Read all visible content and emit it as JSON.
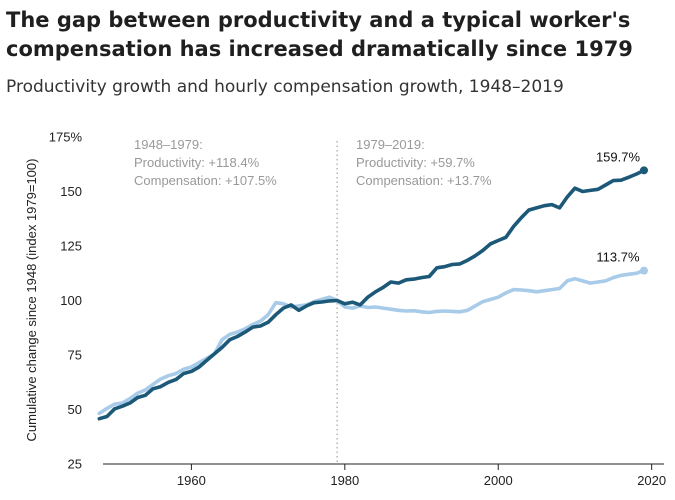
{
  "colors": {
    "productivity": "#1c5878",
    "compensation": "#a7cbe8",
    "divider": "#bbbbbb",
    "axis": "#222222",
    "annotation": "#999999"
  },
  "header": {
    "title_line1": "The gap between productivity and a typical worker's",
    "title_line2": "compensation has increased dramatically since 1979",
    "subtitle": "Productivity growth and hourly compensation growth, 1948–2019"
  },
  "annotations": {
    "left": [
      "1948–1979:",
      "Productivity: +118.4%",
      "Compensation: +107.5%"
    ],
    "right": [
      "1979–2019:",
      "Productivity: +59.7%",
      "Compensation: +13.7%"
    ],
    "end_productivity": "159.7%",
    "end_compensation": "113.7%"
  },
  "chart_data": {
    "type": "line",
    "title": "The gap between productivity and a typical worker's compensation has increased dramatically since 1979",
    "subtitle": "Productivity growth and hourly compensation growth, 1948–2019",
    "xlabel": "",
    "ylabel": "Cumulative change since 1948 (index 1979=100)",
    "xlim": [
      1946,
      2022
    ],
    "ylim": [
      25,
      175
    ],
    "x_ticks": [
      1960,
      1980,
      2000,
      2020
    ],
    "y_ticks": [
      25,
      50,
      75,
      100,
      125,
      150,
      175
    ],
    "y_tick_labels": [
      "25",
      "50",
      "75",
      "100",
      "125",
      "150",
      "175%"
    ],
    "vertical_line_at": 1979,
    "grid": false,
    "x": [
      1948,
      1949,
      1950,
      1951,
      1952,
      1953,
      1954,
      1955,
      1956,
      1957,
      1958,
      1959,
      1960,
      1961,
      1962,
      1963,
      1964,
      1965,
      1966,
      1967,
      1968,
      1969,
      1970,
      1971,
      1972,
      1973,
      1974,
      1975,
      1976,
      1977,
      1978,
      1979,
      1980,
      1981,
      1982,
      1983,
      1984,
      1985,
      1986,
      1987,
      1988,
      1989,
      1990,
      1991,
      1992,
      1993,
      1994,
      1995,
      1996,
      1997,
      1998,
      1999,
      2000,
      2001,
      2002,
      2003,
      2004,
      2005,
      2006,
      2007,
      2008,
      2009,
      2010,
      2011,
      2012,
      2013,
      2014,
      2015,
      2016,
      2017,
      2018,
      2019
    ],
    "series": [
      {
        "name": "Productivity",
        "color": "#1c5878",
        "values": [
          45.8,
          46.8,
          50.3,
          51.5,
          53.0,
          55.5,
          56.5,
          59.5,
          60.5,
          62.5,
          63.8,
          66.5,
          67.5,
          69.5,
          72.5,
          75.5,
          78.5,
          82.0,
          83.5,
          85.5,
          87.8,
          88.3,
          90.0,
          93.5,
          96.5,
          98.0,
          95.5,
          97.5,
          99.0,
          99.3,
          99.8,
          100.0,
          98.5,
          99.2,
          98.0,
          101.5,
          104.0,
          106.0,
          108.5,
          108.0,
          109.5,
          109.8,
          110.5,
          111.0,
          115.0,
          115.5,
          116.5,
          116.8,
          118.5,
          120.5,
          123.0,
          126.0,
          127.5,
          129.0,
          134.0,
          138.0,
          141.5,
          142.5,
          143.5,
          144.0,
          142.5,
          147.5,
          151.5,
          150.0,
          150.5,
          151.0,
          153.0,
          155.0,
          155.2,
          156.5,
          158.0,
          159.7
        ]
      },
      {
        "name": "Compensation",
        "color": "#a7cbe8",
        "values": [
          48.2,
          50.5,
          52.5,
          53.0,
          55.0,
          57.5,
          59.0,
          61.5,
          64.0,
          65.5,
          66.5,
          68.5,
          69.5,
          71.5,
          73.5,
          75.5,
          82.0,
          84.5,
          85.5,
          87.0,
          89.0,
          90.5,
          93.5,
          99.0,
          98.5,
          97.0,
          97.5,
          98.0,
          99.5,
          100.5,
          101.5,
          100.0,
          97.0,
          96.5,
          97.5,
          96.8,
          97.0,
          96.5,
          96.0,
          95.5,
          95.2,
          95.3,
          94.8,
          94.5,
          95.0,
          95.2,
          95.0,
          94.8,
          95.5,
          97.5,
          99.5,
          100.5,
          101.5,
          103.5,
          105.0,
          104.8,
          104.5,
          104.0,
          104.5,
          105.0,
          105.5,
          109.0,
          110.0,
          109.0,
          108.0,
          108.5,
          109.0,
          110.5,
          111.5,
          112.0,
          112.5,
          113.7
        ]
      }
    ],
    "annotations": [
      {
        "text": [
          "1948–1979:",
          "Productivity: +118.4%",
          "Compensation: +107.5%"
        ]
      },
      {
        "text": [
          "1979–2019:",
          "Productivity: +59.7%",
          "Compensation: +13.7%"
        ]
      },
      {
        "text": "159.7%"
      },
      {
        "text": "113.7%"
      }
    ]
  }
}
